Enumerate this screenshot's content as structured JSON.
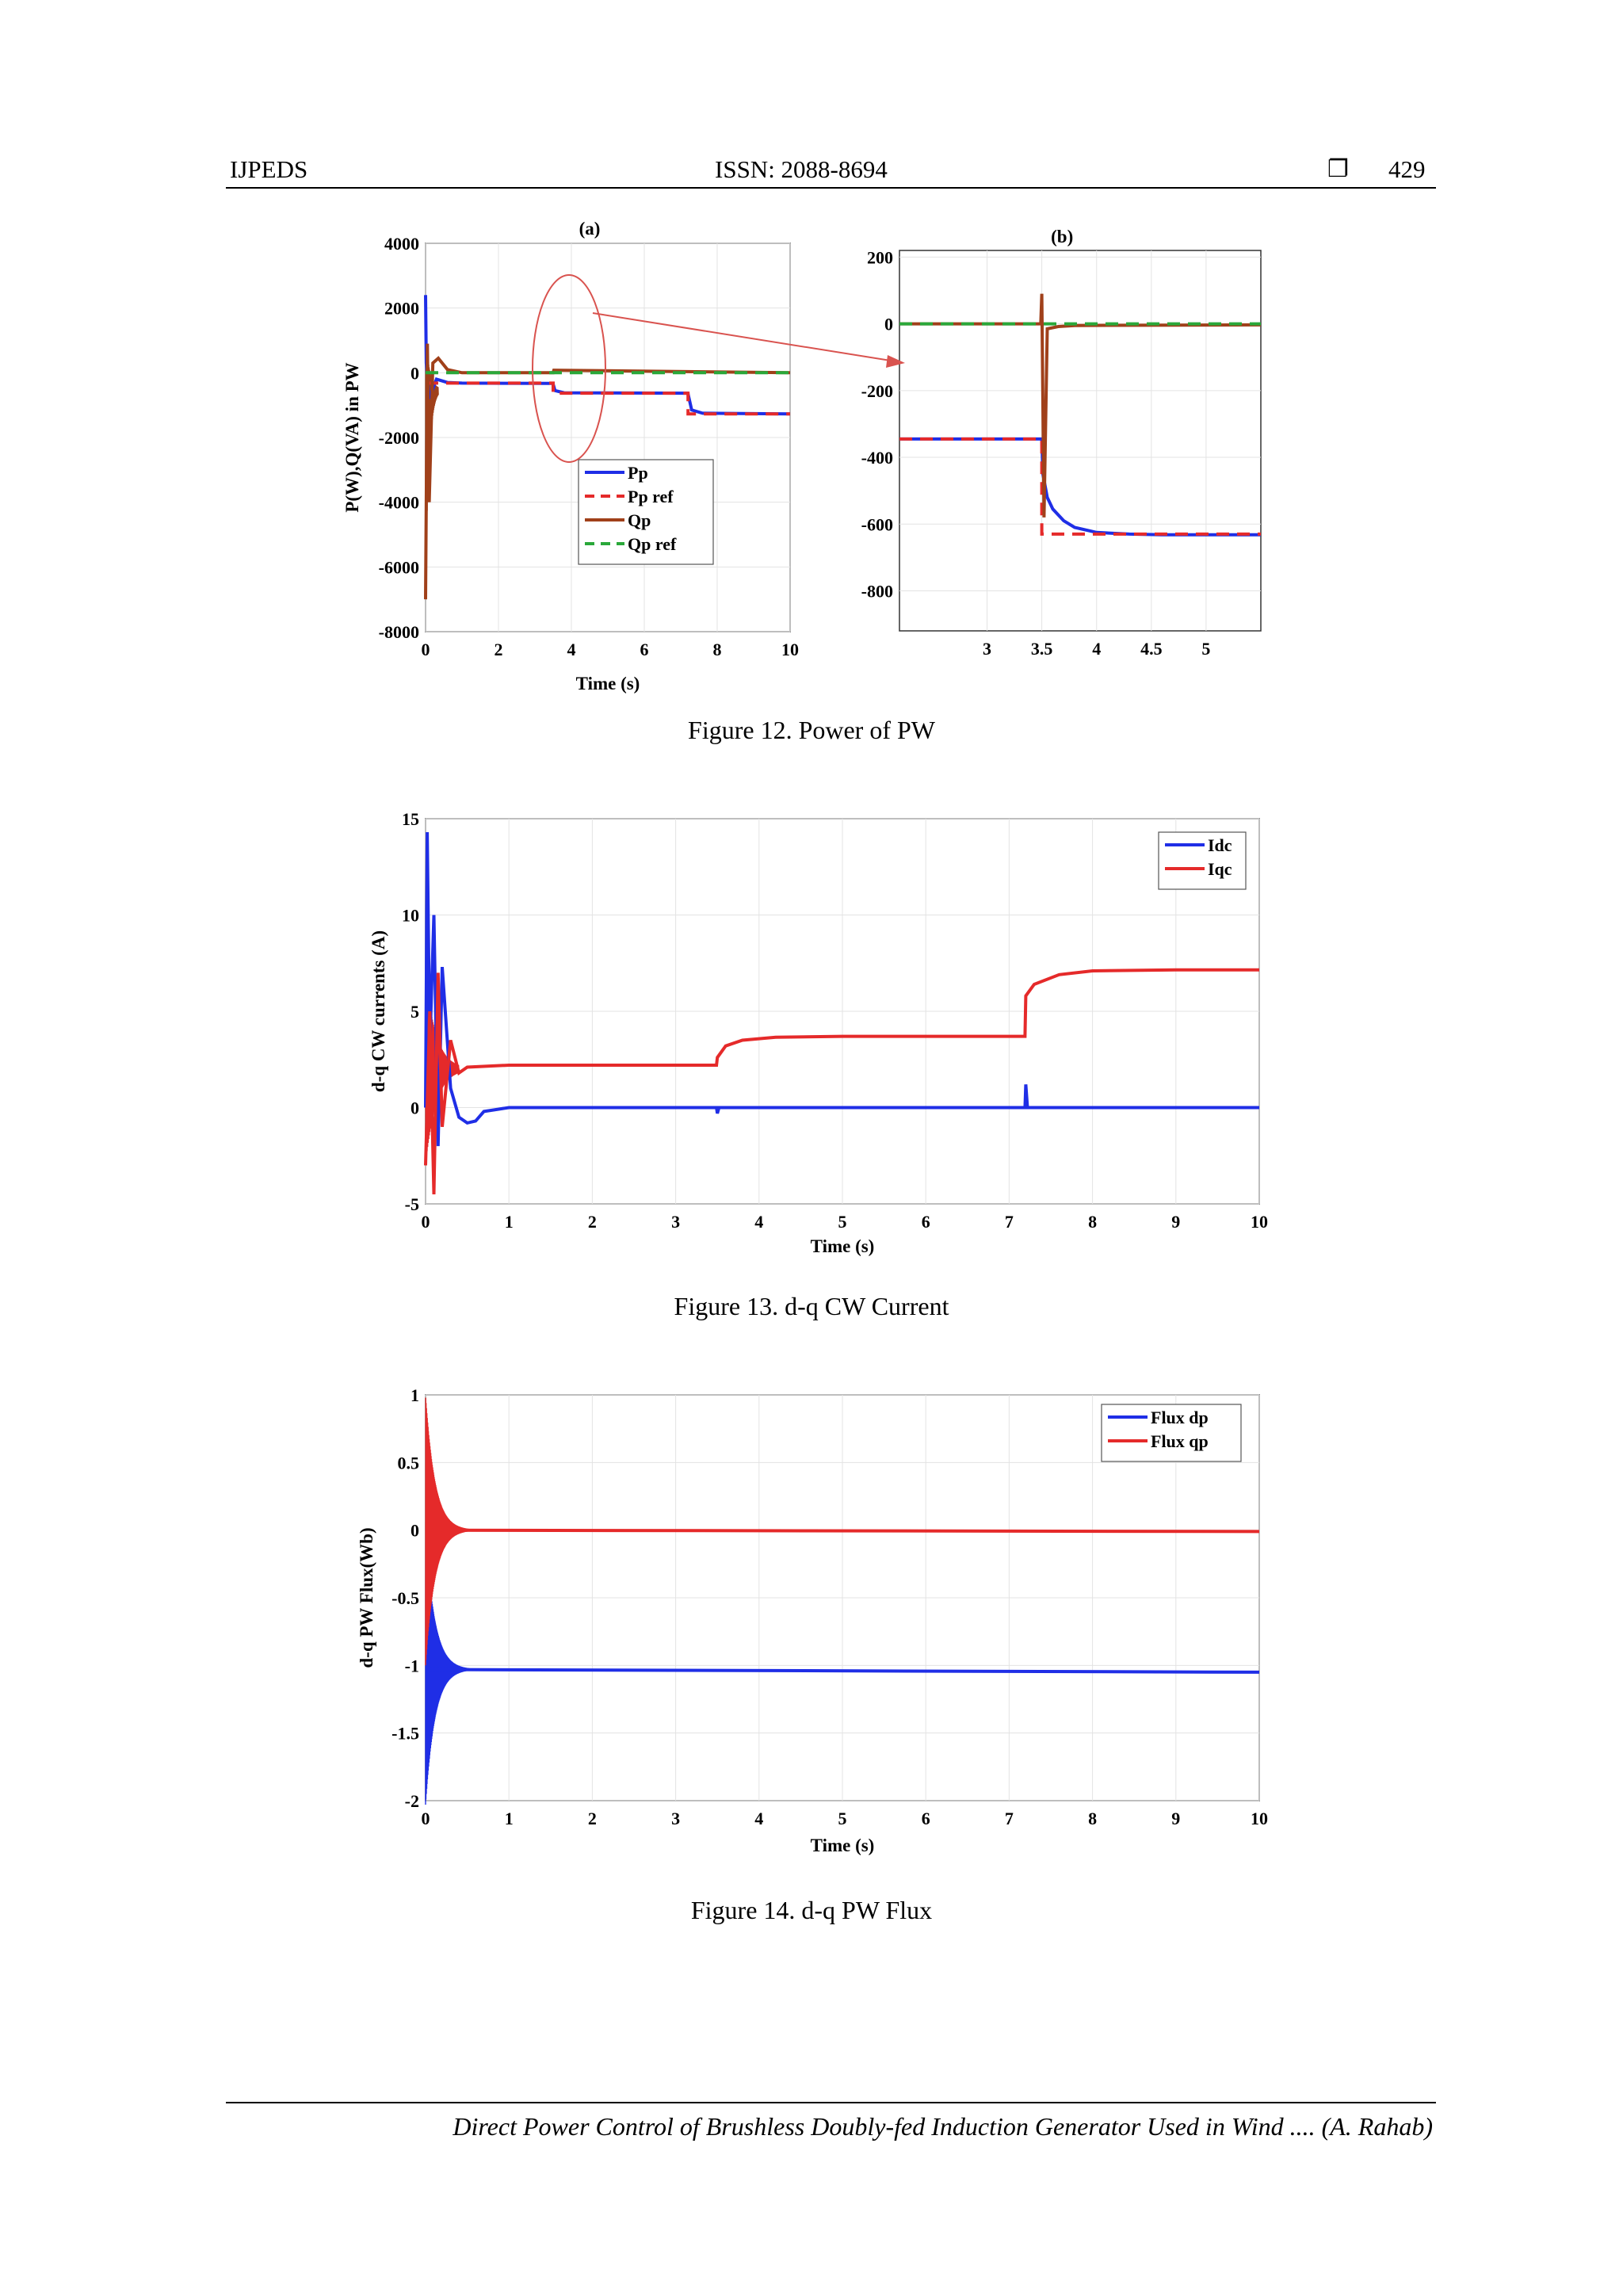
{
  "header": {
    "left": "IJPEDS",
    "center": "ISSN: 2088-8694",
    "box_glyph": "❐",
    "page": "429"
  },
  "footer": {
    "text": "Direct Power Control of Brushless Doubly-fed Induction Generator Used in Wind .... (A. Rahab)"
  },
  "figures": [
    {
      "caption": "Figure 12. Power of PW"
    },
    {
      "caption": "Figure 13. d-q CW Current"
    },
    {
      "caption": "Figure 14. d-q PW Flux"
    }
  ],
  "colors": {
    "blue": "#1f2ee6",
    "red": "#e52a2a",
    "brown": "#a0401a",
    "green": "#2aa83a",
    "annotation": "#d9534f"
  },
  "chart_data": [
    {
      "id": "fig12a",
      "type": "line",
      "title": "(a)",
      "xlabel": "Time (s)",
      "ylabel": "P(W),Q(VA) in PW",
      "xlim": [
        0,
        10
      ],
      "ylim": [
        -8000,
        4000
      ],
      "xticks": [
        0,
        2,
        4,
        6,
        8,
        10
      ],
      "yticks": [
        4000,
        2000,
        0,
        -2000,
        -4000,
        -6000,
        -8000
      ],
      "legend": {
        "position": "lower-center",
        "entries": [
          "Pp",
          "Pp ref",
          "Qp",
          "Qp ref"
        ]
      },
      "series": [
        {
          "name": "Pp",
          "color": "blue",
          "dash": false,
          "x": [
            0,
            0.02,
            0.1,
            0.3,
            0.6,
            1,
            3.49,
            3.5,
            3.55,
            3.8,
            7.19,
            7.2,
            7.3,
            7.6,
            10
          ],
          "y": [
            2400,
            300,
            -800,
            -200,
            -300,
            -320,
            -330,
            -350,
            -550,
            -620,
            -630,
            -650,
            -1150,
            -1250,
            -1270
          ]
        },
        {
          "name": "Pp ref",
          "color": "red",
          "dash": true,
          "x": [
            0,
            0.5,
            3.5,
            3.5,
            7.2,
            7.2,
            10
          ],
          "y": [
            -320,
            -320,
            -320,
            -630,
            -630,
            -1270,
            -1270
          ]
        },
        {
          "name": "Qp",
          "color": "brown",
          "dash": false,
          "x": [
            0,
            0.05,
            0.1,
            0.2,
            0.35,
            0.6,
            1,
            3.5,
            3.52,
            10
          ],
          "y": [
            -7000,
            900,
            -4000,
            300,
            450,
            100,
            0,
            0,
            80,
            0
          ]
        },
        {
          "name": "Qp ref",
          "color": "green",
          "dash": true,
          "x": [
            0,
            10
          ],
          "y": [
            0,
            0
          ]
        }
      ]
    },
    {
      "id": "fig12b",
      "type": "line",
      "title": "(b)",
      "xlim": [
        2.2,
        5.5
      ],
      "ylim": [
        -920,
        220
      ],
      "xticks": [
        3,
        3.5,
        4,
        4.5,
        5
      ],
      "yticks": [
        200,
        0,
        -200,
        -400,
        -600,
        -800
      ],
      "series": [
        {
          "name": "Pp",
          "color": "blue",
          "dash": false,
          "x": [
            2.2,
            3.5,
            3.51,
            3.55,
            3.6,
            3.7,
            3.8,
            4.0,
            4.3,
            4.6,
            5.5
          ],
          "y": [
            -345,
            -345,
            -450,
            -520,
            -555,
            -590,
            -610,
            -625,
            -630,
            -632,
            -632
          ]
        },
        {
          "name": "Pp ref",
          "color": "red",
          "dash": true,
          "x": [
            2.2,
            3.5,
            3.5,
            5.5
          ],
          "y": [
            -345,
            -345,
            -630,
            -630
          ]
        },
        {
          "name": "Qp",
          "color": "brown",
          "dash": false,
          "x": [
            2.2,
            3.49,
            3.5,
            3.52,
            3.55,
            3.65,
            3.8,
            5.5
          ],
          "y": [
            0,
            0,
            90,
            -580,
            -15,
            -8,
            -5,
            -3
          ]
        },
        {
          "name": "Qp ref",
          "color": "green",
          "dash": true,
          "x": [
            2.2,
            5.5
          ],
          "y": [
            0,
            0
          ]
        }
      ]
    },
    {
      "id": "fig13",
      "type": "line",
      "xlabel": "Time (s)",
      "ylabel": "d-q CW currents (A)",
      "xlim": [
        0,
        10
      ],
      "ylim": [
        -5,
        15
      ],
      "xticks": [
        0,
        1,
        2,
        3,
        4,
        5,
        6,
        7,
        8,
        9,
        10
      ],
      "yticks": [
        15,
        10,
        5,
        0,
        -5
      ],
      "legend": {
        "position": "top-right",
        "entries": [
          "Idc",
          "Iqc"
        ]
      },
      "series": [
        {
          "name": "Idc",
          "color": "blue",
          "x": [
            0,
            0.02,
            0.05,
            0.1,
            0.15,
            0.2,
            0.3,
            0.4,
            0.5,
            0.6,
            0.7,
            1,
            3.49,
            3.5,
            3.52,
            7.19,
            7.2,
            7.22,
            10
          ],
          "y": [
            0,
            14.3,
            3,
            10,
            -2,
            7.3,
            1,
            -0.5,
            -0.8,
            -0.7,
            -0.2,
            0,
            0,
            -0.3,
            0,
            0,
            1.2,
            0,
            0
          ]
        },
        {
          "name": "Iqc",
          "color": "red",
          "x": [
            0,
            0.05,
            0.1,
            0.15,
            0.2,
            0.3,
            0.4,
            0.5,
            1,
            3.49,
            3.5,
            3.6,
            3.8,
            4.2,
            5,
            7.19,
            7.2,
            7.3,
            7.6,
            8,
            9,
            10
          ],
          "y": [
            -3,
            5,
            -4.5,
            7,
            -1,
            3.5,
            1.8,
            2.1,
            2.2,
            2.2,
            2.6,
            3.2,
            3.5,
            3.65,
            3.7,
            3.7,
            5.8,
            6.4,
            6.9,
            7.1,
            7.15,
            7.15
          ]
        }
      ]
    },
    {
      "id": "fig14",
      "type": "line",
      "xlabel": "Time (s)",
      "ylabel": "d-q PW Flux(Wb)",
      "xlim": [
        0,
        10
      ],
      "ylim": [
        -2,
        1
      ],
      "xticks": [
        0,
        1,
        2,
        3,
        4,
        5,
        6,
        7,
        8,
        9,
        10
      ],
      "yticks": [
        1,
        0.5,
        0,
        -0.5,
        -1,
        -1.5,
        -2
      ],
      "legend": {
        "position": "top-right",
        "entries": [
          "Flux dp",
          "Flux qp"
        ]
      },
      "series": [
        {
          "name": "Flux dp",
          "color": "blue",
          "x": [
            0,
            10
          ],
          "y": [
            -1.03,
            -1.05
          ]
        },
        {
          "name": "Flux qp",
          "color": "red",
          "x": [
            0,
            10
          ],
          "y": [
            0,
            -0.01
          ]
        }
      ]
    }
  ]
}
